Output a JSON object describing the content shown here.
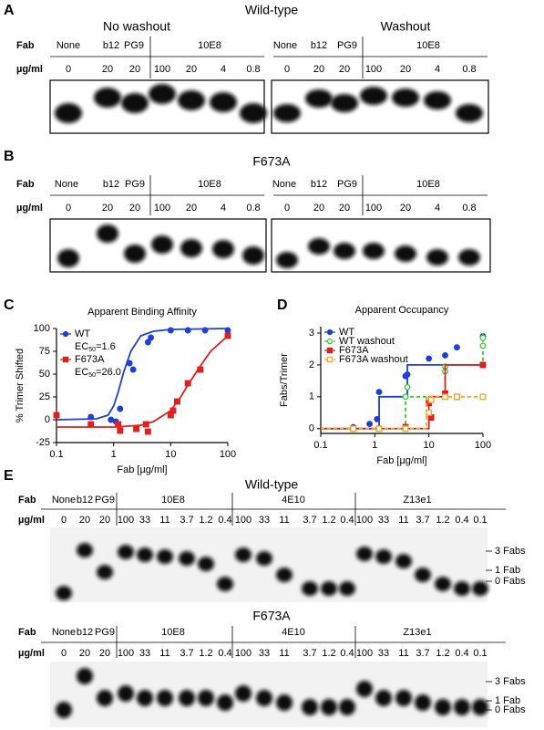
{
  "panel_a": {
    "label": "A",
    "title": "Wild-type",
    "fab_label": "Fab",
    "conc_label": "µg/ml",
    "gels": [
      {
        "title": "No washout",
        "fabs": [
          "None",
          "b12",
          "PG9",
          "10E8"
        ],
        "concs": [
          "0",
          "20",
          "20",
          "100",
          "20",
          "4",
          "0.8"
        ]
      },
      {
        "title": "Washout",
        "fabs": [
          "None",
          "b12",
          "PG9",
          "10E8"
        ],
        "concs": [
          "0",
          "20",
          "20",
          "100",
          "20",
          "4",
          "0.8"
        ]
      }
    ]
  },
  "panel_b": {
    "label": "B",
    "title": "F673A",
    "fab_label": "Fab",
    "conc_label": "µg/ml",
    "gels": [
      {
        "fabs": [
          "None",
          "b12",
          "PG9",
          "10E8"
        ],
        "concs": [
          "0",
          "20",
          "20",
          "100",
          "20",
          "4",
          "0.8"
        ]
      },
      {
        "fabs": [
          "None",
          "b12",
          "PG9",
          "10E8"
        ],
        "concs": [
          "0",
          "20",
          "20",
          "100",
          "20",
          "4",
          "0.8"
        ]
      }
    ]
  },
  "panel_c": {
    "label": "C"
  },
  "panel_d": {
    "label": "D"
  },
  "panel_e": {
    "label": "E",
    "gels": [
      {
        "title": "Wild-type",
        "fab_label": "Fab",
        "conc_label": "µg/ml",
        "fabs": [
          "None",
          "b12",
          "PG9",
          "10E8",
          "4E10",
          "Z13e1"
        ],
        "concs": [
          "0",
          "20",
          "20",
          "100",
          "33",
          "11",
          "3.7",
          "1.2",
          "0.4",
          "100",
          "33",
          "11",
          "3.7",
          "1.2",
          "0.4",
          "100",
          "33",
          "11",
          "3.7",
          "1.2",
          "0.4",
          "0.1"
        ],
        "markers": [
          "3 Fabs",
          "1 Fab",
          "0 Fabs"
        ]
      },
      {
        "title": "F673A",
        "fab_label": "Fab",
        "conc_label": "µg/ml",
        "fabs": [
          "None",
          "b12",
          "PG9",
          "10E8",
          "4E10",
          "Z13e1"
        ],
        "concs": [
          "0",
          "20",
          "20",
          "100",
          "33",
          "11",
          "3.7",
          "1.2",
          "0.4",
          "100",
          "33",
          "11",
          "3.7",
          "1.2",
          "0.4",
          "100",
          "33",
          "11",
          "3.7",
          "1.2",
          "0.4",
          "0.1"
        ],
        "markers": [
          "3 Fabs",
          "1 Fab",
          "0 Fabs"
        ]
      }
    ]
  },
  "chart_data": [
    {
      "type": "scatter",
      "title": "Apparent Binding Affinity",
      "x_label": "Fab [µg/ml]",
      "y_label": "% Trimer Shifted",
      "log_x": true,
      "xlim": [
        0.1,
        100
      ],
      "xticks": [
        0.1,
        1,
        10,
        100
      ],
      "ylim": [
        -25,
        100
      ],
      "yticks": [
        -25,
        0,
        25,
        50,
        75,
        100
      ],
      "series": [
        {
          "name": "WT",
          "color": "#1f3fd6",
          "marker": "circle",
          "filled": true,
          "x": [
            0.4,
            0.9,
            1.1,
            1.3,
            1.9,
            2.2,
            4,
            4.5,
            10,
            20,
            40,
            100
          ],
          "values": [
            3,
            0,
            -2,
            12,
            62,
            55,
            85,
            90,
            98,
            98,
            98,
            98
          ],
          "annotation": {
            "text": "EC",
            "sub": "50",
            "suffix": "=1.6"
          },
          "fit": {
            "x": [
              0.1,
              0.5,
              0.8,
              1,
              1.2,
              1.5,
              2,
              3,
              5,
              10,
              100
            ],
            "values": [
              0,
              1,
              5,
              15,
              30,
              52,
              75,
              92,
              97,
              99,
              100
            ]
          }
        },
        {
          "name": "F673A",
          "color": "#e02020",
          "marker": "square",
          "filled": true,
          "x": [
            0.1,
            0.4,
            1.2,
            1.3,
            2.5,
            3.7,
            4,
            10,
            11,
            13,
            20,
            33,
            100
          ],
          "values": [
            5,
            -5,
            -5,
            -12,
            -10,
            -5,
            -13,
            5,
            10,
            20,
            40,
            55,
            92
          ],
          "annotation": {
            "text": "EC",
            "sub": "50",
            "suffix": "=26.0"
          },
          "fit": {
            "x": [
              0.1,
              1,
              3,
              5,
              10,
              15,
              20,
              30,
              50,
              100
            ],
            "values": [
              -8,
              -8,
              -6,
              -2,
              10,
              25,
              38,
              55,
              75,
              92
            ]
          }
        }
      ]
    },
    {
      "type": "scatter",
      "title": "Apparent Occupancy",
      "x_label": "Fab [µg/ml]",
      "y_label": "Fabs/Trimer",
      "log_x": true,
      "xlim": [
        0.1,
        100
      ],
      "xticks": [
        0.1,
        1,
        10,
        100
      ],
      "ylim": [
        -0.15,
        3.2
      ],
      "yticks": [
        0,
        1,
        2,
        3
      ],
      "series": [
        {
          "name": "WT",
          "color": "#1f3fd6",
          "marker": "circle",
          "filled": true,
          "dash": false,
          "x": [
            0.4,
            0.8,
            1.1,
            1.2,
            3.7,
            4,
            10,
            20,
            33,
            100
          ],
          "values": [
            0.05,
            0.15,
            0.3,
            1.15,
            1.65,
            1.7,
            2.2,
            2.3,
            2.55,
            2.9
          ],
          "fit": {
            "x": [
              0.1,
              1.2,
              1.2,
              4,
              4,
              100
            ],
            "values": [
              0,
              0,
              1,
              1,
              2,
              2
            ]
          }
        },
        {
          "name": "WT washout",
          "color": "#33cc33",
          "marker": "circle",
          "filled": false,
          "dash": true,
          "x": [
            3.7,
            4,
            20,
            20,
            100,
            100
          ],
          "values": [
            1.0,
            1.3,
            1.8,
            1.95,
            2.6,
            2.85
          ],
          "fit": {
            "x": [
              0.1,
              3.7,
              3.7,
              20,
              20,
              100,
              100
            ],
            "values": [
              0,
              0,
              1,
              1,
              2,
              2,
              3
            ]
          }
        },
        {
          "name": "F673A",
          "color": "#e02020",
          "marker": "square",
          "filled": true,
          "dash": false,
          "x": [
            0.4,
            1.2,
            3.7,
            10,
            11,
            20,
            33,
            100
          ],
          "values": [
            0,
            0,
            0.05,
            0.8,
            0.35,
            1.1,
            1.0,
            2.0
          ],
          "fit": {
            "x": [
              0.1,
              10,
              10,
              20,
              20,
              100
            ],
            "values": [
              0,
              0,
              1,
              1,
              2,
              2
            ]
          }
        },
        {
          "name": "F673A washout",
          "color": "#f5a623",
          "marker": "square",
          "filled": false,
          "dash": true,
          "x": [
            0.4,
            1.2,
            3.7,
            10,
            11,
            20,
            33,
            100
          ],
          "values": [
            0,
            0,
            0,
            0.5,
            0.9,
            1.0,
            1.0,
            1.0
          ],
          "fit": {
            "x": [
              0.1,
              9,
              9,
              100
            ],
            "values": [
              0,
              0,
              1,
              1
            ]
          }
        }
      ]
    }
  ]
}
